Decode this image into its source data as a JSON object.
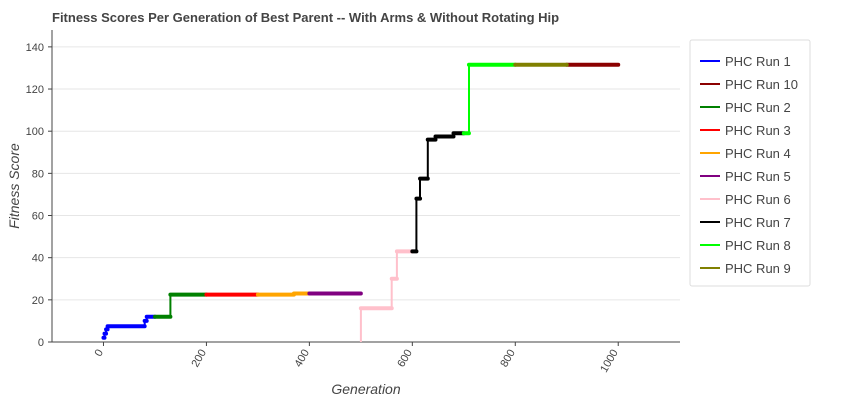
{
  "chart_data": {
    "type": "line",
    "title": "Fitness Scores Per Generation of Best Parent -- With Arms & Without Rotating Hip",
    "xlabel": "Generation",
    "ylabel": "Fitness Score",
    "xlim": [
      -100,
      1120
    ],
    "ylim": [
      0,
      148
    ],
    "xticks": [
      0,
      200,
      400,
      600,
      800,
      1000
    ],
    "yticks": [
      0,
      20,
      40,
      60,
      80,
      100,
      120,
      140
    ],
    "grid": "horizontal",
    "legend_position": "right",
    "series": [
      {
        "name": "PHC Run 1",
        "color": "#0000ff",
        "points": [
          [
            0,
            2
          ],
          [
            2,
            2
          ],
          [
            2,
            4
          ],
          [
            5,
            4
          ],
          [
            5,
            6
          ],
          [
            8,
            6
          ],
          [
            8,
            7.5
          ],
          [
            80,
            7.5
          ],
          [
            80,
            10
          ],
          [
            84,
            10
          ],
          [
            84,
            12
          ],
          [
            100,
            12
          ]
        ]
      },
      {
        "name": "PHC Run 10",
        "color": "#8b0000",
        "points": [
          [
            900,
            131.5
          ],
          [
            1000,
            131.5
          ]
        ]
      },
      {
        "name": "PHC Run 2",
        "color": "#008000",
        "points": [
          [
            100,
            12
          ],
          [
            130,
            12
          ],
          [
            130,
            22.5
          ],
          [
            200,
            22.5
          ]
        ]
      },
      {
        "name": "PHC Run 3",
        "color": "#ff0000",
        "points": [
          [
            200,
            22.5
          ],
          [
            300,
            22.5
          ]
        ]
      },
      {
        "name": "PHC Run 4",
        "color": "#ffa500",
        "points": [
          [
            300,
            22.5
          ],
          [
            370,
            22.5
          ],
          [
            370,
            23
          ],
          [
            400,
            23
          ]
        ]
      },
      {
        "name": "PHC Run 5",
        "color": "#800080",
        "points": [
          [
            400,
            23
          ],
          [
            500,
            23
          ]
        ]
      },
      {
        "name": "PHC Run 6",
        "color": "#ffc0cb",
        "points": [
          [
            500,
            0
          ],
          [
            500,
            16
          ],
          [
            560,
            16
          ],
          [
            560,
            30
          ],
          [
            570,
            30
          ],
          [
            570,
            43
          ],
          [
            600,
            43
          ]
        ]
      },
      {
        "name": "PHC Run 7",
        "color": "#000000",
        "points": [
          [
            600,
            43
          ],
          [
            608,
            43
          ],
          [
            608,
            68
          ],
          [
            615,
            68
          ],
          [
            615,
            77.5
          ],
          [
            630,
            77.5
          ],
          [
            630,
            96
          ],
          [
            645,
            96
          ],
          [
            645,
            97.5
          ],
          [
            680,
            97.5
          ],
          [
            680,
            99
          ],
          [
            700,
            99
          ]
        ]
      },
      {
        "name": "PHC Run 8",
        "color": "#00ff00",
        "points": [
          [
            700,
            99
          ],
          [
            710,
            99
          ],
          [
            710,
            131.5
          ],
          [
            800,
            131.5
          ]
        ]
      },
      {
        "name": "PHC Run 9",
        "color": "#808000",
        "points": [
          [
            800,
            131.5
          ],
          [
            900,
            131.5
          ]
        ]
      }
    ]
  }
}
